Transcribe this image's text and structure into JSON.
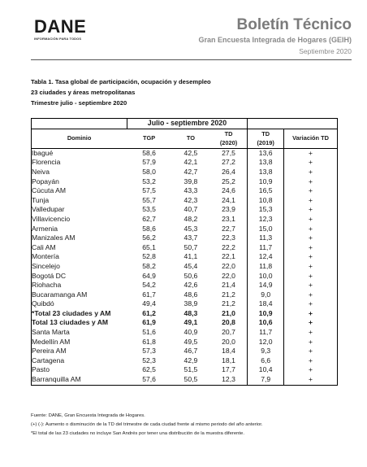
{
  "header": {
    "logo": "DANE",
    "logo_sub": "INFORMACIÓN PARA TODOS",
    "title": "Boletín Técnico",
    "subtitle": "Gran Encuesta Integrada de Hogares (GEIH)",
    "date": "Septiembre 2020"
  },
  "caption": {
    "line1": "Tabla 1. Tasa global de participación, ocupación y desempleo",
    "line2": "23 ciudades y áreas metropolitanas",
    "line3": "Trimestre julio - septiembre 2020"
  },
  "table": {
    "group_header": "Julio - septiembre 2020",
    "columns": {
      "dominio": "Dominio",
      "tgp": "TGP",
      "to": "TO",
      "td2020_a": "TD",
      "td2020_b": "(2020)",
      "td2019_a": "TD",
      "td2019_b": "(2019)",
      "var": "Variación TD"
    },
    "rows": [
      {
        "dom": "Ibagué",
        "tgp": "58,6",
        "to": "42,5",
        "td2020": "27,5",
        "td2019": "13,6",
        "var": "+"
      },
      {
        "dom": "Florencia",
        "tgp": "57,9",
        "to": "42,1",
        "td2020": "27,2",
        "td2019": "13,8",
        "var": "+"
      },
      {
        "dom": "Neiva",
        "tgp": "58,0",
        "to": "42,7",
        "td2020": "26,4",
        "td2019": "13,8",
        "var": "+"
      },
      {
        "dom": "Popayán",
        "tgp": "53,2",
        "to": "39,8",
        "td2020": "25,2",
        "td2019": "10,9",
        "var": "+"
      },
      {
        "dom": "Cúcuta AM",
        "tgp": "57,5",
        "to": "43,3",
        "td2020": "24,6",
        "td2019": "16,5",
        "var": "+"
      },
      {
        "dom": "Tunja",
        "tgp": "55,7",
        "to": "42,3",
        "td2020": "24,1",
        "td2019": "10,8",
        "var": "+"
      },
      {
        "dom": "Valledupar",
        "tgp": "53,5",
        "to": "40,7",
        "td2020": "23,9",
        "td2019": "15,3",
        "var": "+"
      },
      {
        "dom": "Villavicencio",
        "tgp": "62,7",
        "to": "48,2",
        "td2020": "23,1",
        "td2019": "12,3",
        "var": "+"
      },
      {
        "dom": "Armenia",
        "tgp": "58,6",
        "to": "45,3",
        "td2020": "22,7",
        "td2019": "15,0",
        "var": "+"
      },
      {
        "dom": "Manizales AM",
        "tgp": "56,2",
        "to": "43,7",
        "td2020": "22,3",
        "td2019": "11,3",
        "var": "+"
      },
      {
        "dom": "Cali AM",
        "tgp": "65,1",
        "to": "50,7",
        "td2020": "22,2",
        "td2019": "11,7",
        "var": "+"
      },
      {
        "dom": "Montería",
        "tgp": "52,8",
        "to": "41,1",
        "td2020": "22,1",
        "td2019": "12,4",
        "var": "+"
      },
      {
        "dom": "Sincelejo",
        "tgp": "58,2",
        "to": "45,4",
        "td2020": "22,0",
        "td2019": "11,8",
        "var": "+"
      },
      {
        "dom": "Bogotá DC",
        "tgp": "64,9",
        "to": "50,6",
        "td2020": "22,0",
        "td2019": "10,0",
        "var": "+"
      },
      {
        "dom": "Riohacha",
        "tgp": "54,2",
        "to": "42,6",
        "td2020": "21,4",
        "td2019": "14,9",
        "var": "+"
      },
      {
        "dom": "Bucaramanga AM",
        "tgp": "61,7",
        "to": "48,6",
        "td2020": "21,2",
        "td2019": "9,0",
        "var": "+"
      },
      {
        "dom": "Quibdó",
        "tgp": "49,4",
        "to": "38,9",
        "td2020": "21,2",
        "td2019": "18,4",
        "var": "+"
      },
      {
        "dom": "*Total 23 ciudades y AM",
        "tgp": "61,2",
        "to": "48,3",
        "td2020": "21,0",
        "td2019": "10,9",
        "var": "+",
        "bold": true
      },
      {
        "dom": "Total 13 ciudades y AM",
        "tgp": "61,9",
        "to": "49,1",
        "td2020": "20,8",
        "td2019": "10,6",
        "var": "+",
        "bold": true
      },
      {
        "dom": "Santa Marta",
        "tgp": "51,6",
        "to": "40,9",
        "td2020": "20,7",
        "td2019": "11,7",
        "var": "+"
      },
      {
        "dom": "Medellín AM",
        "tgp": "61,8",
        "to": "49,5",
        "td2020": "20,0",
        "td2019": "12,0",
        "var": "+"
      },
      {
        "dom": "Pereira AM",
        "tgp": "57,3",
        "to": "46,7",
        "td2020": "18,4",
        "td2019": "9,3",
        "var": "+"
      },
      {
        "dom": "Cartagena",
        "tgp": "52,3",
        "to": "42,9",
        "td2020": "18,1",
        "td2019": "6,6",
        "var": "+"
      },
      {
        "dom": "Pasto",
        "tgp": "62,5",
        "to": "51,5",
        "td2020": "17,7",
        "td2019": "10,4",
        "var": "+"
      },
      {
        "dom": "Barranquilla AM",
        "tgp": "57,6",
        "to": "50,5",
        "td2020": "12,3",
        "td2019": "7,9",
        "var": "+"
      }
    ]
  },
  "footnotes": {
    "source": "Fuente: DANE, Gran Encuesta Integrada de Hogares.",
    "note1": "(+) (-): Aumento o disminución de la TD del trimestre de cada ciudad frente al mismo periodo del año anterior.",
    "note2": "*El total de las 23 ciudades no incluye San Andrés por tener una distribución de la muestra diferente."
  }
}
